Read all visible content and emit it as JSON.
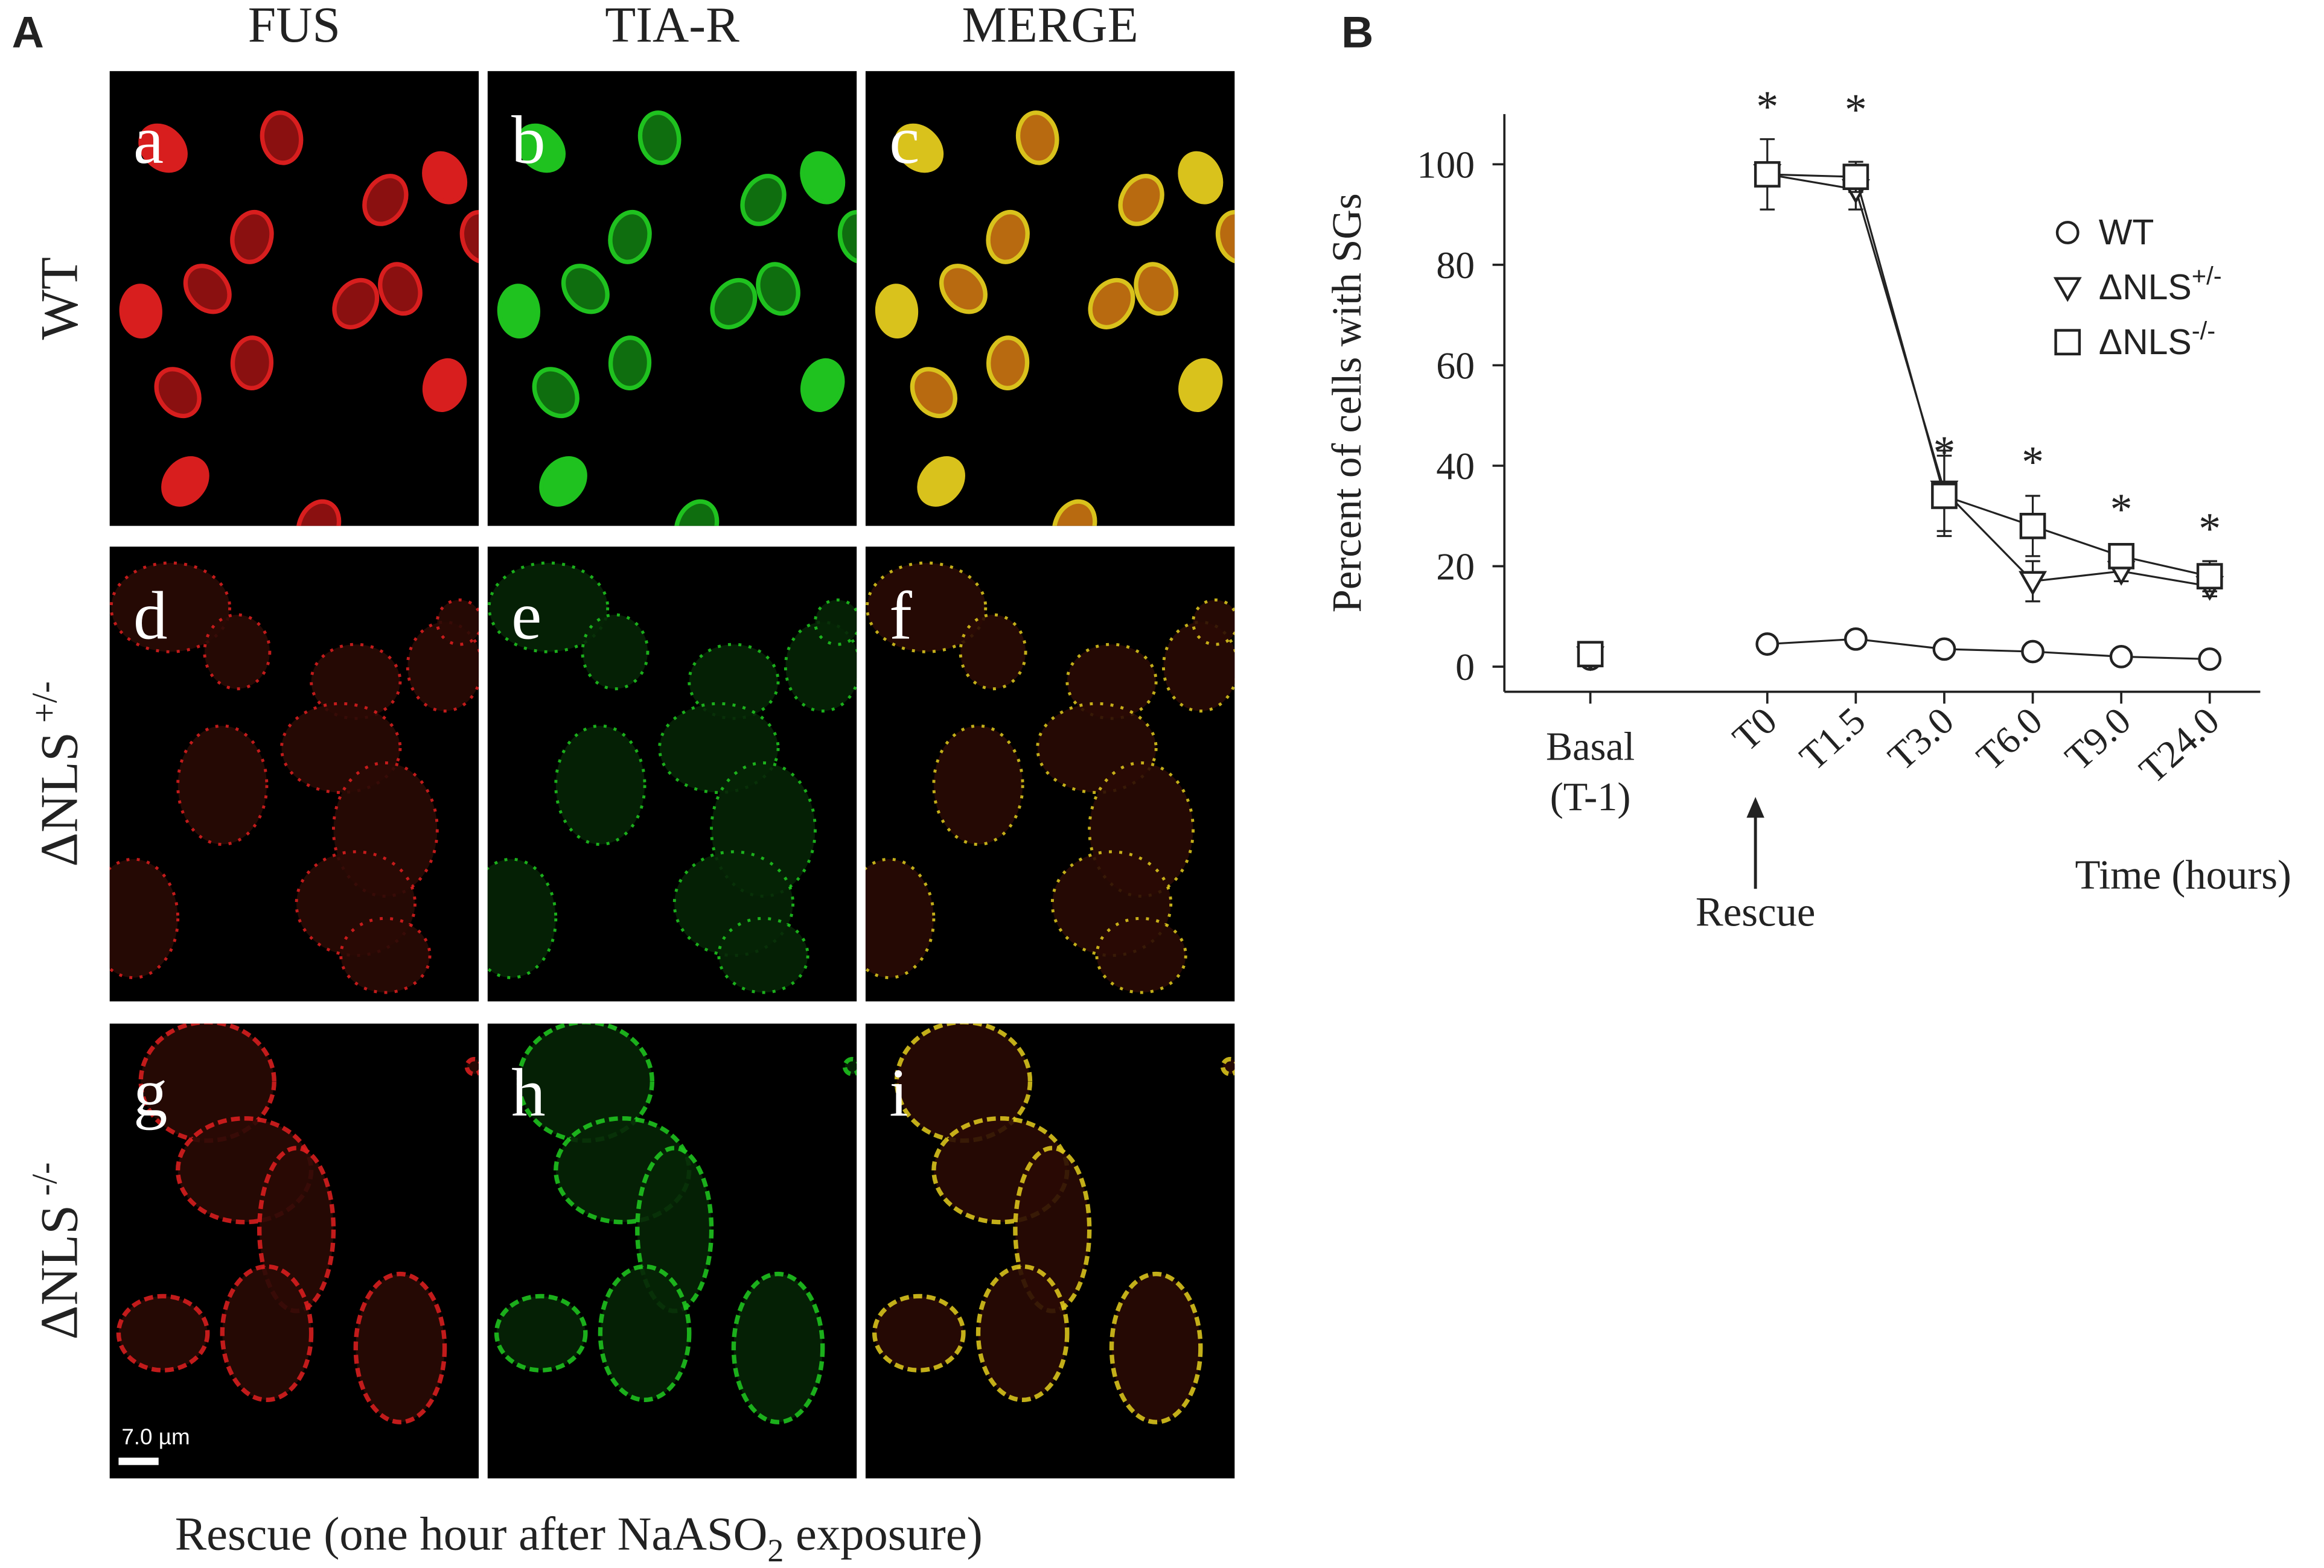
{
  "panel_a": {
    "label": "A",
    "columns": [
      "FUS",
      "TIA-R",
      "MERGE"
    ],
    "rows": [
      {
        "name": "WT"
      },
      {
        "name": "ΔNLS",
        "superscript": "+/-"
      },
      {
        "name": "ΔNLS",
        "superscript": "-/-"
      }
    ],
    "letters": [
      "a",
      "b",
      "c",
      "d",
      "e",
      "f",
      "g",
      "h",
      "i"
    ],
    "scale_bar": "7.0 µm",
    "caption": [
      "Rescue (one hour after NaASO",
      "2",
      " exposure)"
    ]
  },
  "chart_data": {
    "type": "line",
    "panel_label": "B",
    "y_label": "Percent of cells with SGs",
    "x_label": "Time (hours)",
    "annotation": "Rescue",
    "categories": [
      "Basal (T-1)",
      "T0",
      "T1.5",
      "T3.0",
      "T6.0",
      "T9.0",
      "T24.0"
    ],
    "significance": [
      null,
      "*",
      "*",
      "*",
      "*",
      "*",
      "*"
    ],
    "ylim": [
      -5,
      110
    ],
    "yticks": [
      0,
      20,
      40,
      60,
      80,
      100
    ],
    "series": [
      {
        "name": "WT",
        "marker": "circle",
        "color": "#222222",
        "values": [
          1.5,
          4.5,
          5.5,
          3.5,
          3,
          2,
          1.5
        ]
      },
      {
        "name": "ΔNLS",
        "superscript": "+/-",
        "marker": "triangle-down",
        "color": "#222222",
        "values": [
          2,
          98,
          95,
          35,
          17,
          19,
          16
        ],
        "errors": [
          1,
          1,
          4,
          8,
          4,
          2,
          2
        ]
      },
      {
        "name": "ΔNLS",
        "superscript": "-/-",
        "marker": "square",
        "color": "#222222",
        "values": [
          2.5,
          98,
          97.5,
          34,
          28,
          22,
          18
        ],
        "errors": [
          1,
          7,
          3,
          8,
          6,
          2,
          3
        ]
      }
    ]
  }
}
